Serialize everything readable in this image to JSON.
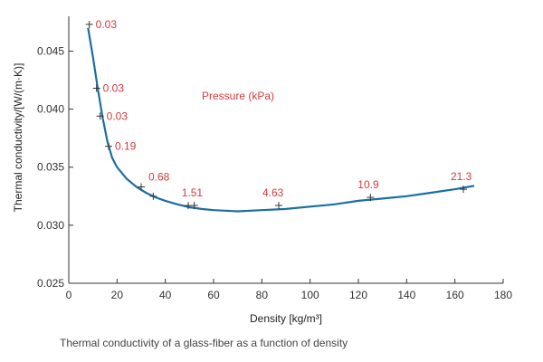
{
  "caption": "Thermal conductivity of a glass-fiber as a function of density",
  "colors": {
    "curve": "#1b6fa0",
    "labels": "#d63a3a",
    "axis": "#333333",
    "markers": "#333333"
  },
  "chart_data": {
    "type": "scatter",
    "xlabel": "Density [kg/m³]",
    "ylabel": "Thermal conductivity/[W/(m·K)]",
    "legend_title": "Pressure (kPa)",
    "xlim": [
      0,
      180
    ],
    "ylim": [
      0.025,
      0.048
    ],
    "x_ticks": [
      0,
      20,
      40,
      60,
      80,
      100,
      120,
      140,
      160,
      180
    ],
    "x_tick_labels": [
      "0",
      "20",
      "40",
      "60",
      "80",
      "100",
      "120",
      "140",
      "160",
      "180"
    ],
    "y_ticks": [
      0.025,
      0.03,
      0.035,
      0.04,
      0.045
    ],
    "y_tick_labels": [
      "0.025",
      "0.030",
      "0.035",
      "0.040",
      "0.045"
    ],
    "grid": false,
    "points": [
      {
        "x": 8.5,
        "y": 0.0473,
        "label": "0.03"
      },
      {
        "x": 11.5,
        "y": 0.0418,
        "label": "0.03"
      },
      {
        "x": 13,
        "y": 0.0394,
        "label": "0.03"
      },
      {
        "x": 16.5,
        "y": 0.0368,
        "label": "0.19"
      },
      {
        "x": 30,
        "y": 0.0333,
        "label": "0.68"
      },
      {
        "x": 35,
        "y": 0.0325,
        "label": ""
      },
      {
        "x": 49.5,
        "y": 0.0317,
        "label": ""
      },
      {
        "x": 52,
        "y": 0.0317,
        "label": "1.51"
      },
      {
        "x": 87,
        "y": 0.0317,
        "label": "4.63"
      },
      {
        "x": 125,
        "y": 0.0324,
        "label": "10.9"
      },
      {
        "x": 163.5,
        "y": 0.0331,
        "label": "21.3"
      }
    ],
    "curve": {
      "x": [
        8,
        10,
        12,
        14,
        16,
        18,
        20,
        24,
        28,
        32,
        36,
        40,
        45,
        50,
        55,
        60,
        65,
        70,
        80,
        90,
        100,
        110,
        120,
        130,
        140,
        150,
        160,
        168
      ],
      "y": [
        0.047,
        0.0445,
        0.0418,
        0.0393,
        0.0372,
        0.0358,
        0.035,
        0.034,
        0.0333,
        0.0328,
        0.0324,
        0.0321,
        0.0318,
        0.03155,
        0.0314,
        0.0313,
        0.03125,
        0.0312,
        0.0313,
        0.0314,
        0.0316,
        0.0318,
        0.0321,
        0.0323,
        0.0325,
        0.0328,
        0.0331,
        0.0334
      ]
    }
  }
}
